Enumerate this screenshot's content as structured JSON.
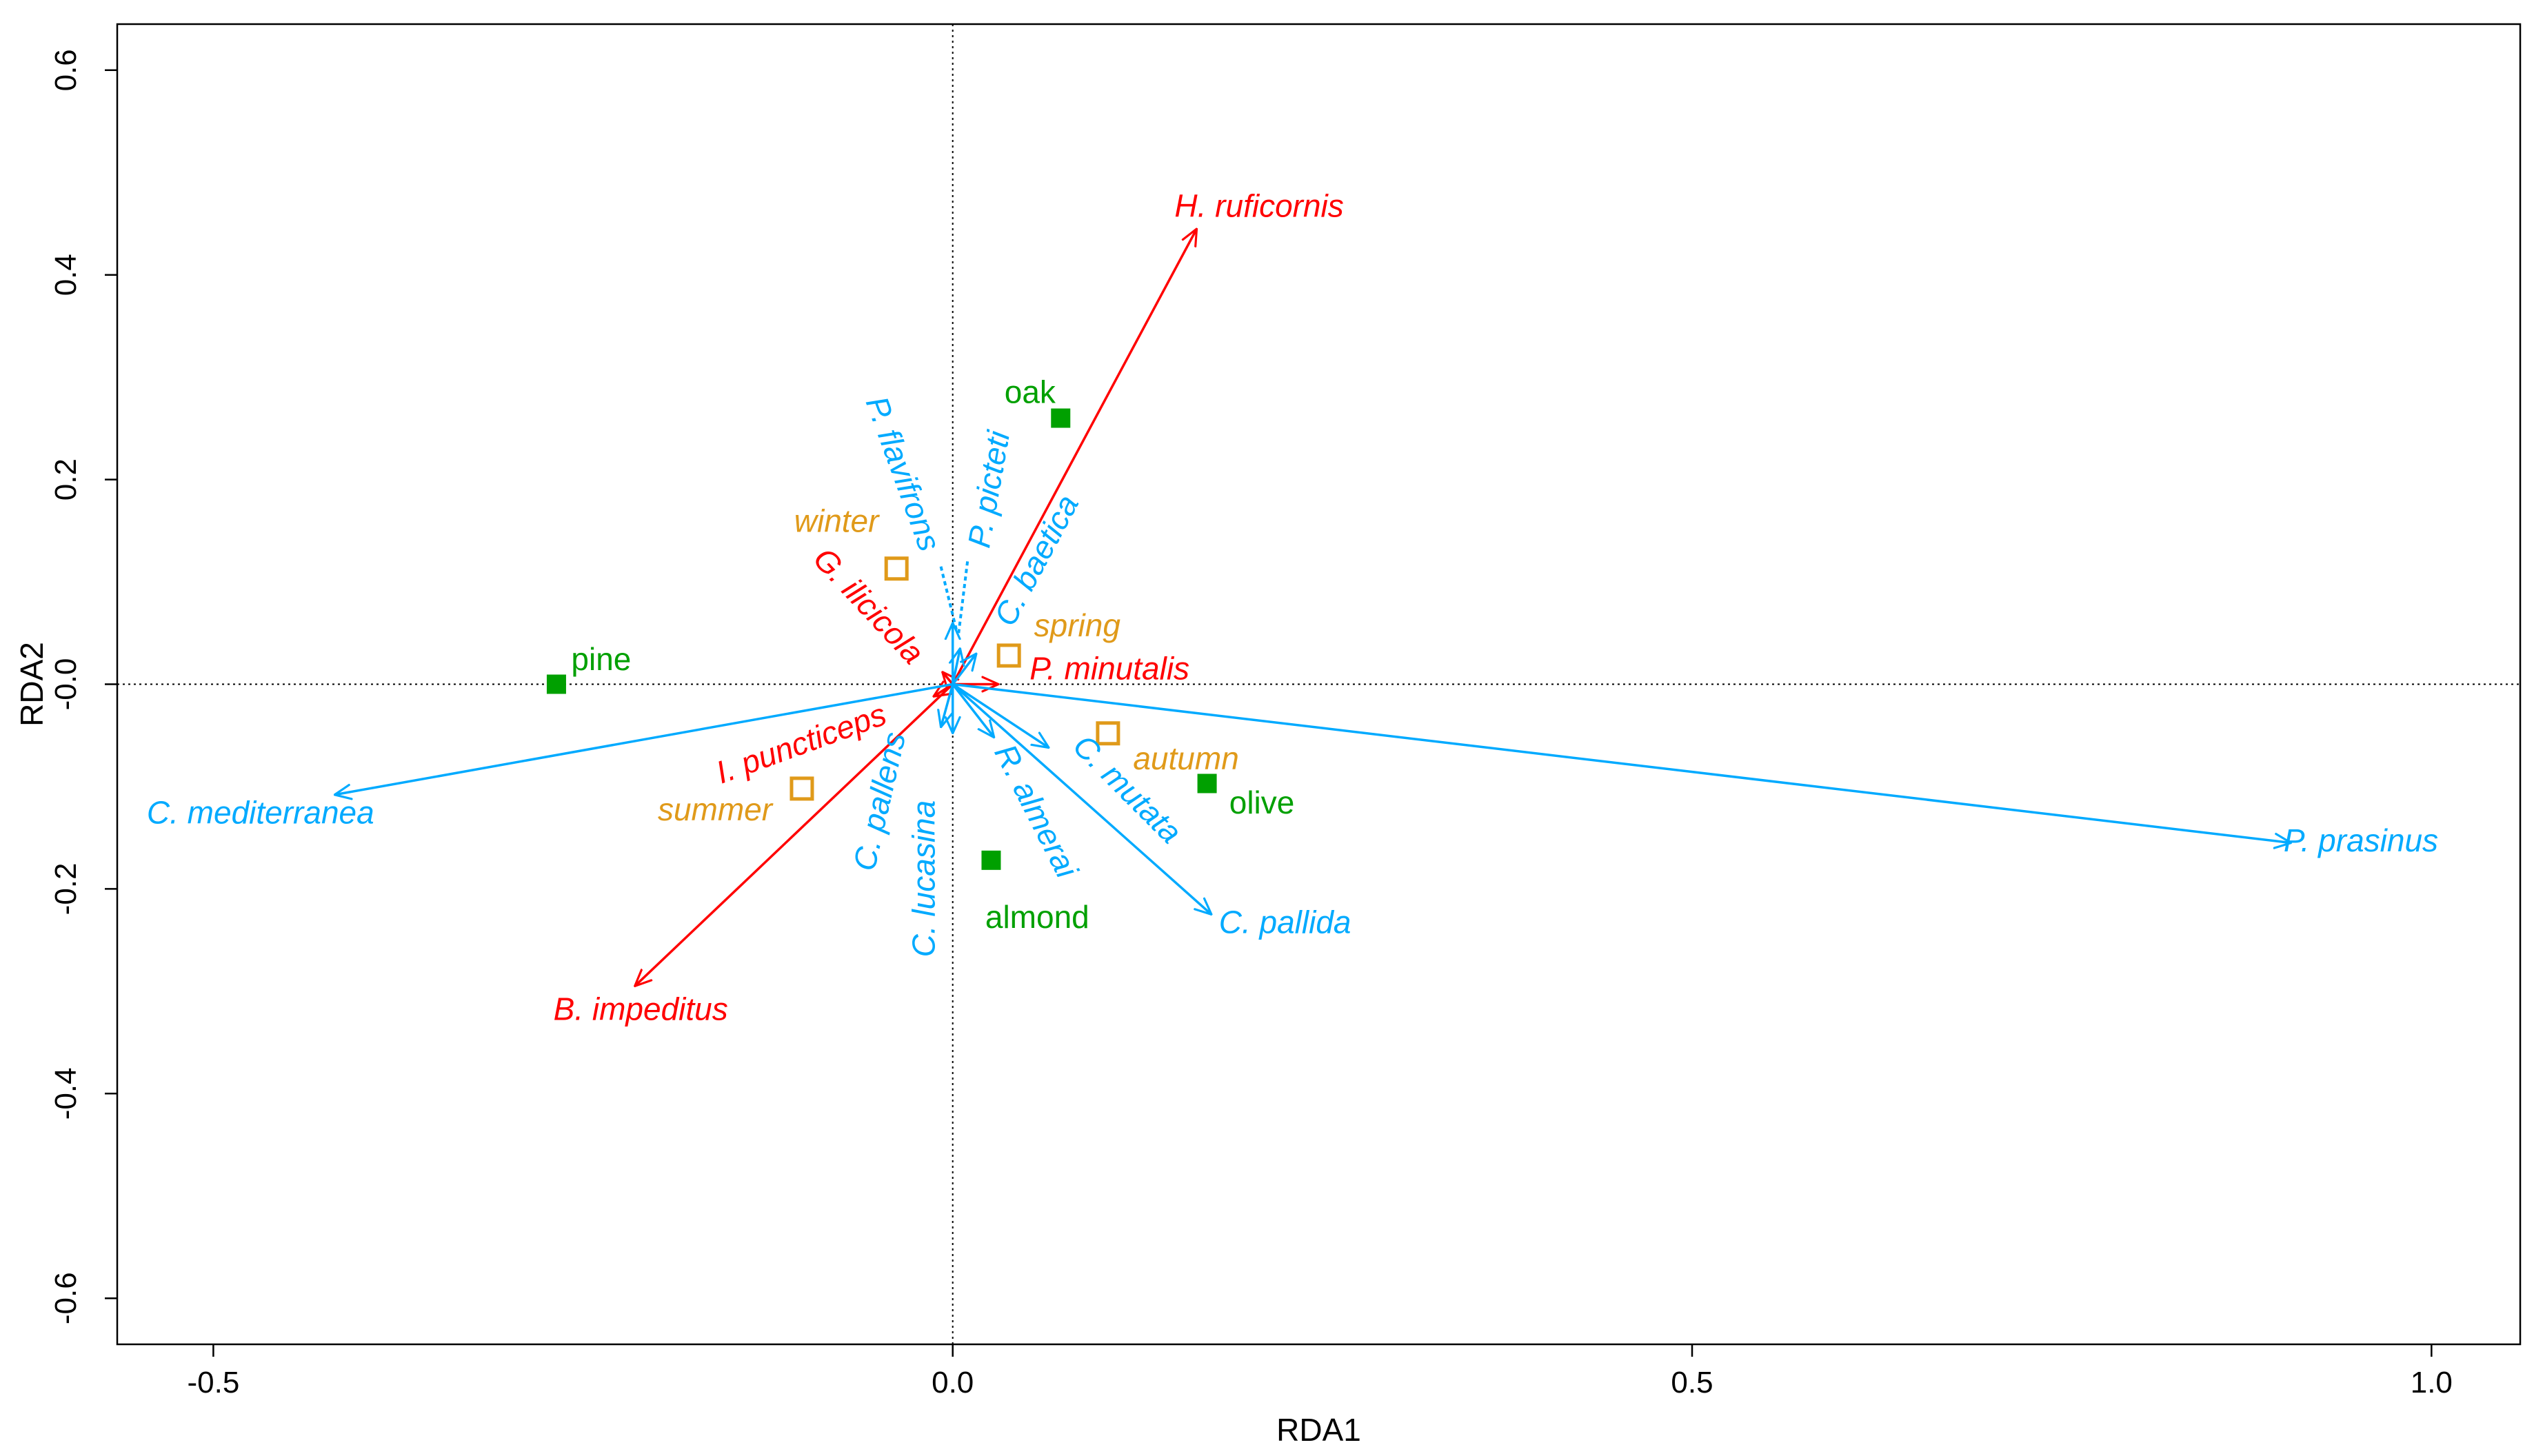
{
  "chart_data": {
    "type": "scatter",
    "subtype": "rda-biplot",
    "title": "",
    "xlabel": "RDA1",
    "ylabel": "RDA2",
    "xlim": [
      -0.565,
      1.06
    ],
    "ylim": [
      -0.645,
      0.645
    ],
    "xticks": [
      {
        "v": -0.5,
        "label": "-0.5"
      },
      {
        "v": 0.0,
        "label": "0.0"
      },
      {
        "v": 0.5,
        "label": "0.5"
      },
      {
        "v": 1.0,
        "label": "1.0"
      }
    ],
    "yticks": [
      {
        "v": 0.6,
        "label": "0.6"
      },
      {
        "v": 0.4,
        "label": "0.4"
      },
      {
        "v": 0.2,
        "label": "0.2"
      },
      {
        "v": 0.0,
        "label": "-0.0"
      },
      {
        "v": -0.2,
        "label": "-0.2"
      },
      {
        "v": -0.4,
        "label": "-0.4"
      },
      {
        "v": -0.6,
        "label": "-0.6"
      }
    ],
    "colors": {
      "parasitoid": "#ff0000",
      "leafhopper": "#00aaff",
      "site": "#00a000",
      "season": "#e09a1a"
    },
    "arrows": [
      {
        "name": "H. ruficornis",
        "group": "parasitoid",
        "x": 0.165,
        "y": 0.445,
        "label": {
          "x": 0.15,
          "y": 0.465,
          "anchor": "start",
          "rot": 0
        }
      },
      {
        "name": "B. impeditus",
        "group": "parasitoid",
        "x": -0.215,
        "y": -0.295,
        "label": {
          "x": -0.27,
          "y": -0.32,
          "anchor": "start",
          "rot": 0
        }
      },
      {
        "name": "G. ilicicola",
        "group": "parasitoid",
        "x": -0.007,
        "y": 0.012,
        "label": {
          "x": -0.058,
          "y": 0.075,
          "anchor": "middle",
          "rot": 47
        }
      },
      {
        "name": "I. puncticeps",
        "group": "parasitoid",
        "x": -0.013,
        "y": -0.012,
        "label": {
          "x": -0.102,
          "y": -0.06,
          "anchor": "middle",
          "rot": -20
        }
      },
      {
        "name": "P. minutalis",
        "group": "parasitoid",
        "x": 0.031,
        "y": 0.0,
        "label": {
          "x": 0.052,
          "y": 0.013,
          "anchor": "start",
          "rot": 0
        }
      },
      {
        "name": "C. mediterranea",
        "group": "leafhopper",
        "x": -0.418,
        "y": -0.108,
        "label": {
          "x": -0.545,
          "y": -0.128,
          "anchor": "start",
          "rot": 0
        }
      },
      {
        "name": "P. prasinus",
        "group": "leafhopper",
        "x": 0.905,
        "y": -0.155,
        "label": {
          "x": 0.9,
          "y": -0.155,
          "anchor": "start",
          "rot": 0
        }
      },
      {
        "name": "C. pallida",
        "group": "leafhopper",
        "x": 0.175,
        "y": -0.225,
        "label": {
          "x": 0.18,
          "y": -0.235,
          "anchor": "start",
          "rot": 0
        }
      },
      {
        "name": "C. mutata",
        "group": "leafhopper",
        "x": 0.065,
        "y": -0.062,
        "label": {
          "x": 0.117,
          "y": -0.104,
          "anchor": "middle",
          "rot": 45
        }
      },
      {
        "name": "R. almerai",
        "group": "leafhopper",
        "x": 0.028,
        "y": -0.052,
        "label": {
          "x": 0.055,
          "y": -0.125,
          "anchor": "middle",
          "rot": 63
        }
      },
      {
        "name": "C. lucasina",
        "group": "leafhopper",
        "x": 0.0,
        "y": -0.048,
        "label": {
          "x": -0.018,
          "y": -0.19,
          "anchor": "middle",
          "rot": -90
        }
      },
      {
        "name": "C. pallens",
        "group": "leafhopper",
        "x": -0.008,
        "y": -0.042,
        "label": {
          "x": -0.048,
          "y": -0.115,
          "anchor": "middle",
          "rot": -77
        }
      },
      {
        "name": "C. baetica",
        "group": "leafhopper",
        "x": 0.016,
        "y": 0.03,
        "label": {
          "x": 0.058,
          "y": 0.12,
          "anchor": "middle",
          "rot": -62
        }
      },
      {
        "name": "P. picteti",
        "group": "leafhopper",
        "x": 0.005,
        "y": 0.035,
        "label": {
          "x": 0.026,
          "y": 0.19,
          "anchor": "middle",
          "rot": -80
        }
      },
      {
        "name": "P. flavifrons",
        "group": "leafhopper",
        "x": 0.0,
        "y": 0.06,
        "label": {
          "x": -0.035,
          "y": 0.205,
          "anchor": "middle",
          "rot": 70
        }
      }
    ],
    "dashed_lines": [
      {
        "group": "leafhopper",
        "x1": -0.008,
        "y1": 0.115,
        "x2": 0.003,
        "y2": 0.05
      },
      {
        "group": "leafhopper",
        "x1": 0.01,
        "y1": 0.12,
        "x2": 0.004,
        "y2": 0.05
      }
    ],
    "sites": [
      {
        "name": "pine",
        "x": -0.268,
        "y": 0.0,
        "label": {
          "x": -0.258,
          "y": 0.022,
          "anchor": "start"
        }
      },
      {
        "name": "oak",
        "x": 0.073,
        "y": 0.26,
        "label": {
          "x": 0.035,
          "y": 0.283,
          "anchor": "start"
        }
      },
      {
        "name": "olive",
        "x": 0.172,
        "y": -0.097,
        "label": {
          "x": 0.187,
          "y": -0.118,
          "anchor": "start"
        }
      },
      {
        "name": "almond",
        "x": 0.026,
        "y": -0.172,
        "label": {
          "x": 0.022,
          "y": -0.23,
          "anchor": "start"
        }
      }
    ],
    "seasons": [
      {
        "name": "winter",
        "x": -0.038,
        "y": 0.113,
        "label": {
          "x": -0.05,
          "y": 0.157,
          "anchor": "end"
        }
      },
      {
        "name": "spring",
        "x": 0.038,
        "y": 0.028,
        "label": {
          "x": 0.055,
          "y": 0.055,
          "anchor": "start"
        }
      },
      {
        "name": "autumn",
        "x": 0.105,
        "y": -0.048,
        "label": {
          "x": 0.122,
          "y": -0.075,
          "anchor": "start"
        }
      },
      {
        "name": "summer",
        "x": -0.102,
        "y": -0.102,
        "label": {
          "x": -0.122,
          "y": -0.125,
          "anchor": "end"
        }
      }
    ]
  }
}
